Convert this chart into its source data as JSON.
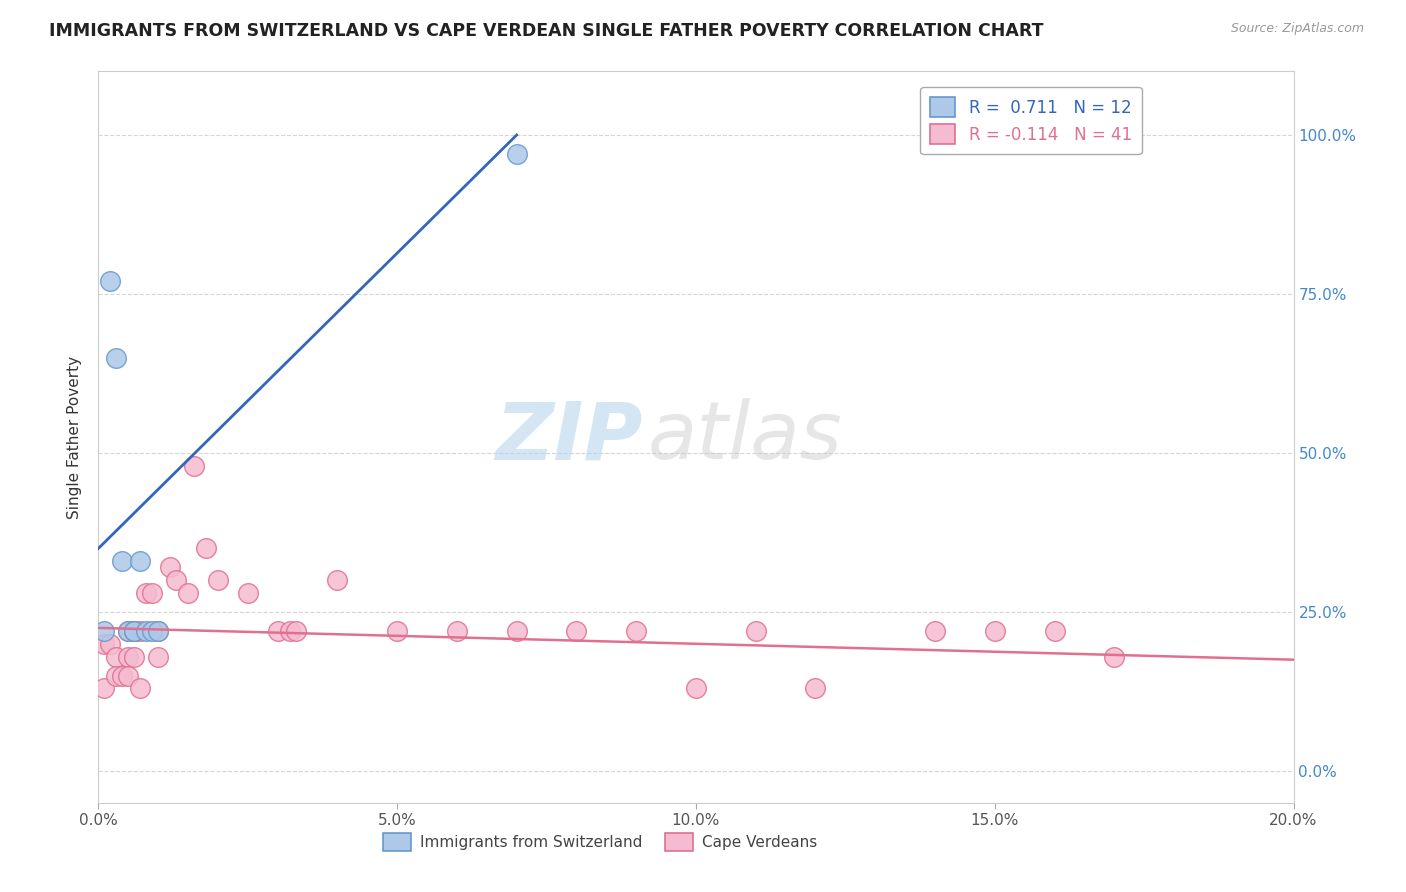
{
  "title": "IMMIGRANTS FROM SWITZERLAND VS CAPE VERDEAN SINGLE FATHER POVERTY CORRELATION CHART",
  "source": "Source: ZipAtlas.com",
  "ylabel": "Single Father Poverty",
  "xlim": [
    0.0,
    0.2
  ],
  "ylim": [
    -0.05,
    1.1
  ],
  "xticks": [
    0.0,
    0.05,
    0.1,
    0.15,
    0.2
  ],
  "xticklabels": [
    "0.0%",
    "5.0%",
    "10.0%",
    "15.0%",
    "20.0%"
  ],
  "yticks": [
    0.0,
    0.25,
    0.5,
    0.75,
    1.0
  ],
  "yticklabels": [
    "0.0%",
    "25.0%",
    "50.0%",
    "75.0%",
    "100.0%"
  ],
  "switzerland_color": "#adc8e8",
  "switzerland_edge": "#6699cc",
  "capeverde_color": "#f5bbd0",
  "capeverde_edge": "#e07090",
  "trendline_blue": "#3366bb",
  "trendline_pink": "#e07090",
  "legend_R1": "0.711",
  "legend_N1": "12",
  "legend_R2": "-0.114",
  "legend_N2": "41",
  "watermark_zip": "ZIP",
  "watermark_atlas": "atlas",
  "background_color": "#ffffff",
  "grid_color": "#cccccc",
  "swiss_x": [
    0.001,
    0.002,
    0.003,
    0.004,
    0.005,
    0.006,
    0.006,
    0.007,
    0.008,
    0.009,
    0.01,
    0.07
  ],
  "swiss_y": [
    0.22,
    0.77,
    0.65,
    0.33,
    0.22,
    0.22,
    0.22,
    0.33,
    0.22,
    0.22,
    0.22,
    0.97
  ],
  "cape_x": [
    0.001,
    0.001,
    0.002,
    0.003,
    0.003,
    0.004,
    0.005,
    0.005,
    0.005,
    0.006,
    0.006,
    0.006,
    0.007,
    0.007,
    0.008,
    0.009,
    0.01,
    0.01,
    0.012,
    0.013,
    0.015,
    0.016,
    0.018,
    0.02,
    0.025,
    0.03,
    0.032,
    0.033,
    0.04,
    0.05,
    0.06,
    0.07,
    0.08,
    0.09,
    0.1,
    0.11,
    0.12,
    0.14,
    0.15,
    0.16,
    0.17
  ],
  "cape_y": [
    0.2,
    0.13,
    0.2,
    0.18,
    0.15,
    0.15,
    0.22,
    0.18,
    0.15,
    0.22,
    0.22,
    0.18,
    0.22,
    0.13,
    0.28,
    0.28,
    0.22,
    0.18,
    0.32,
    0.3,
    0.28,
    0.48,
    0.35,
    0.3,
    0.28,
    0.22,
    0.22,
    0.22,
    0.3,
    0.22,
    0.22,
    0.22,
    0.22,
    0.22,
    0.13,
    0.22,
    0.13,
    0.22,
    0.22,
    0.22,
    0.18
  ],
  "swiss_trendline_x": [
    0.0,
    0.07
  ],
  "swiss_trendline_y": [
    0.35,
    1.0
  ],
  "cape_trendline_x": [
    0.0,
    0.2
  ],
  "cape_trendline_y": [
    0.225,
    0.175
  ]
}
